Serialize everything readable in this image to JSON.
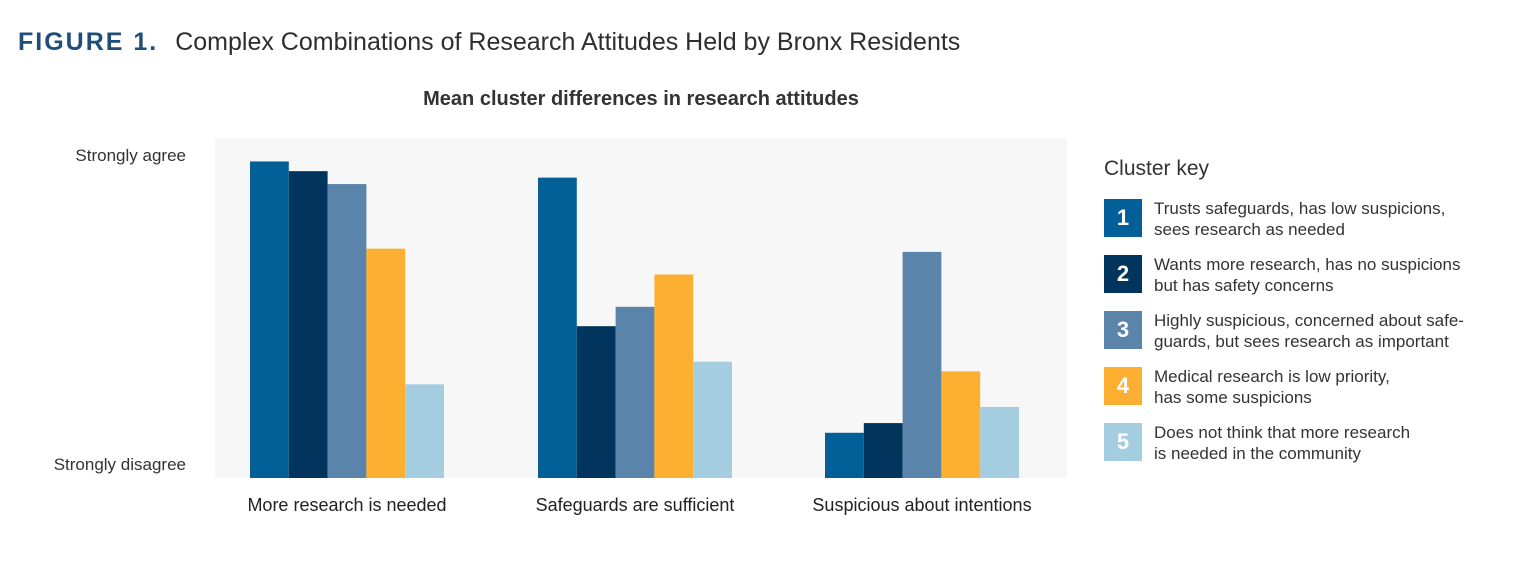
{
  "figure": {
    "label": "FIGURE 1.",
    "title": "Complex Combinations of Research Attitudes Held by Bronx Residents"
  },
  "chart_data": {
    "type": "bar",
    "title": "Mean cluster differences in research attitudes",
    "categories": [
      "More research is needed",
      "Safeguards are sufficient",
      "Suspicious about intentions"
    ],
    "y_tick_labels": {
      "top": "Strongly agree",
      "bottom": "Strongly disagree"
    },
    "ylim": [
      0,
      1
    ],
    "series": [
      {
        "name": "1",
        "color": "#035f98",
        "values": [
          0.98,
          0.93,
          0.14
        ]
      },
      {
        "name": "2",
        "color": "#02355e",
        "values": [
          0.95,
          0.47,
          0.17
        ]
      },
      {
        "name": "3",
        "color": "#5b84aa",
        "values": [
          0.91,
          0.53,
          0.7
        ]
      },
      {
        "name": "4",
        "color": "#fdaf32",
        "values": [
          0.71,
          0.63,
          0.33
        ]
      },
      {
        "name": "5",
        "color": "#a5cde0",
        "values": [
          0.29,
          0.36,
          0.22
        ]
      }
    ],
    "grid": false,
    "legend_position": "right"
  },
  "legend": {
    "title": "Cluster key",
    "items": [
      {
        "num": "1",
        "color": "#035f98",
        "text": "Trusts safeguards, has low suspicions,\nsees research as needed"
      },
      {
        "num": "2",
        "color": "#02355e",
        "text": "Wants more research, has no suspicions\nbut has safety concerns"
      },
      {
        "num": "3",
        "color": "#5b84aa",
        "text": "Highly suspicious, concerned about safe-\nguards, but sees research as important"
      },
      {
        "num": "4",
        "color": "#fdaf32",
        "text": "Medical research is low priority,\nhas some suspicions"
      },
      {
        "num": "5",
        "color": "#a5cde0",
        "text": "Does not think that more research\nis needed in the community"
      }
    ]
  }
}
